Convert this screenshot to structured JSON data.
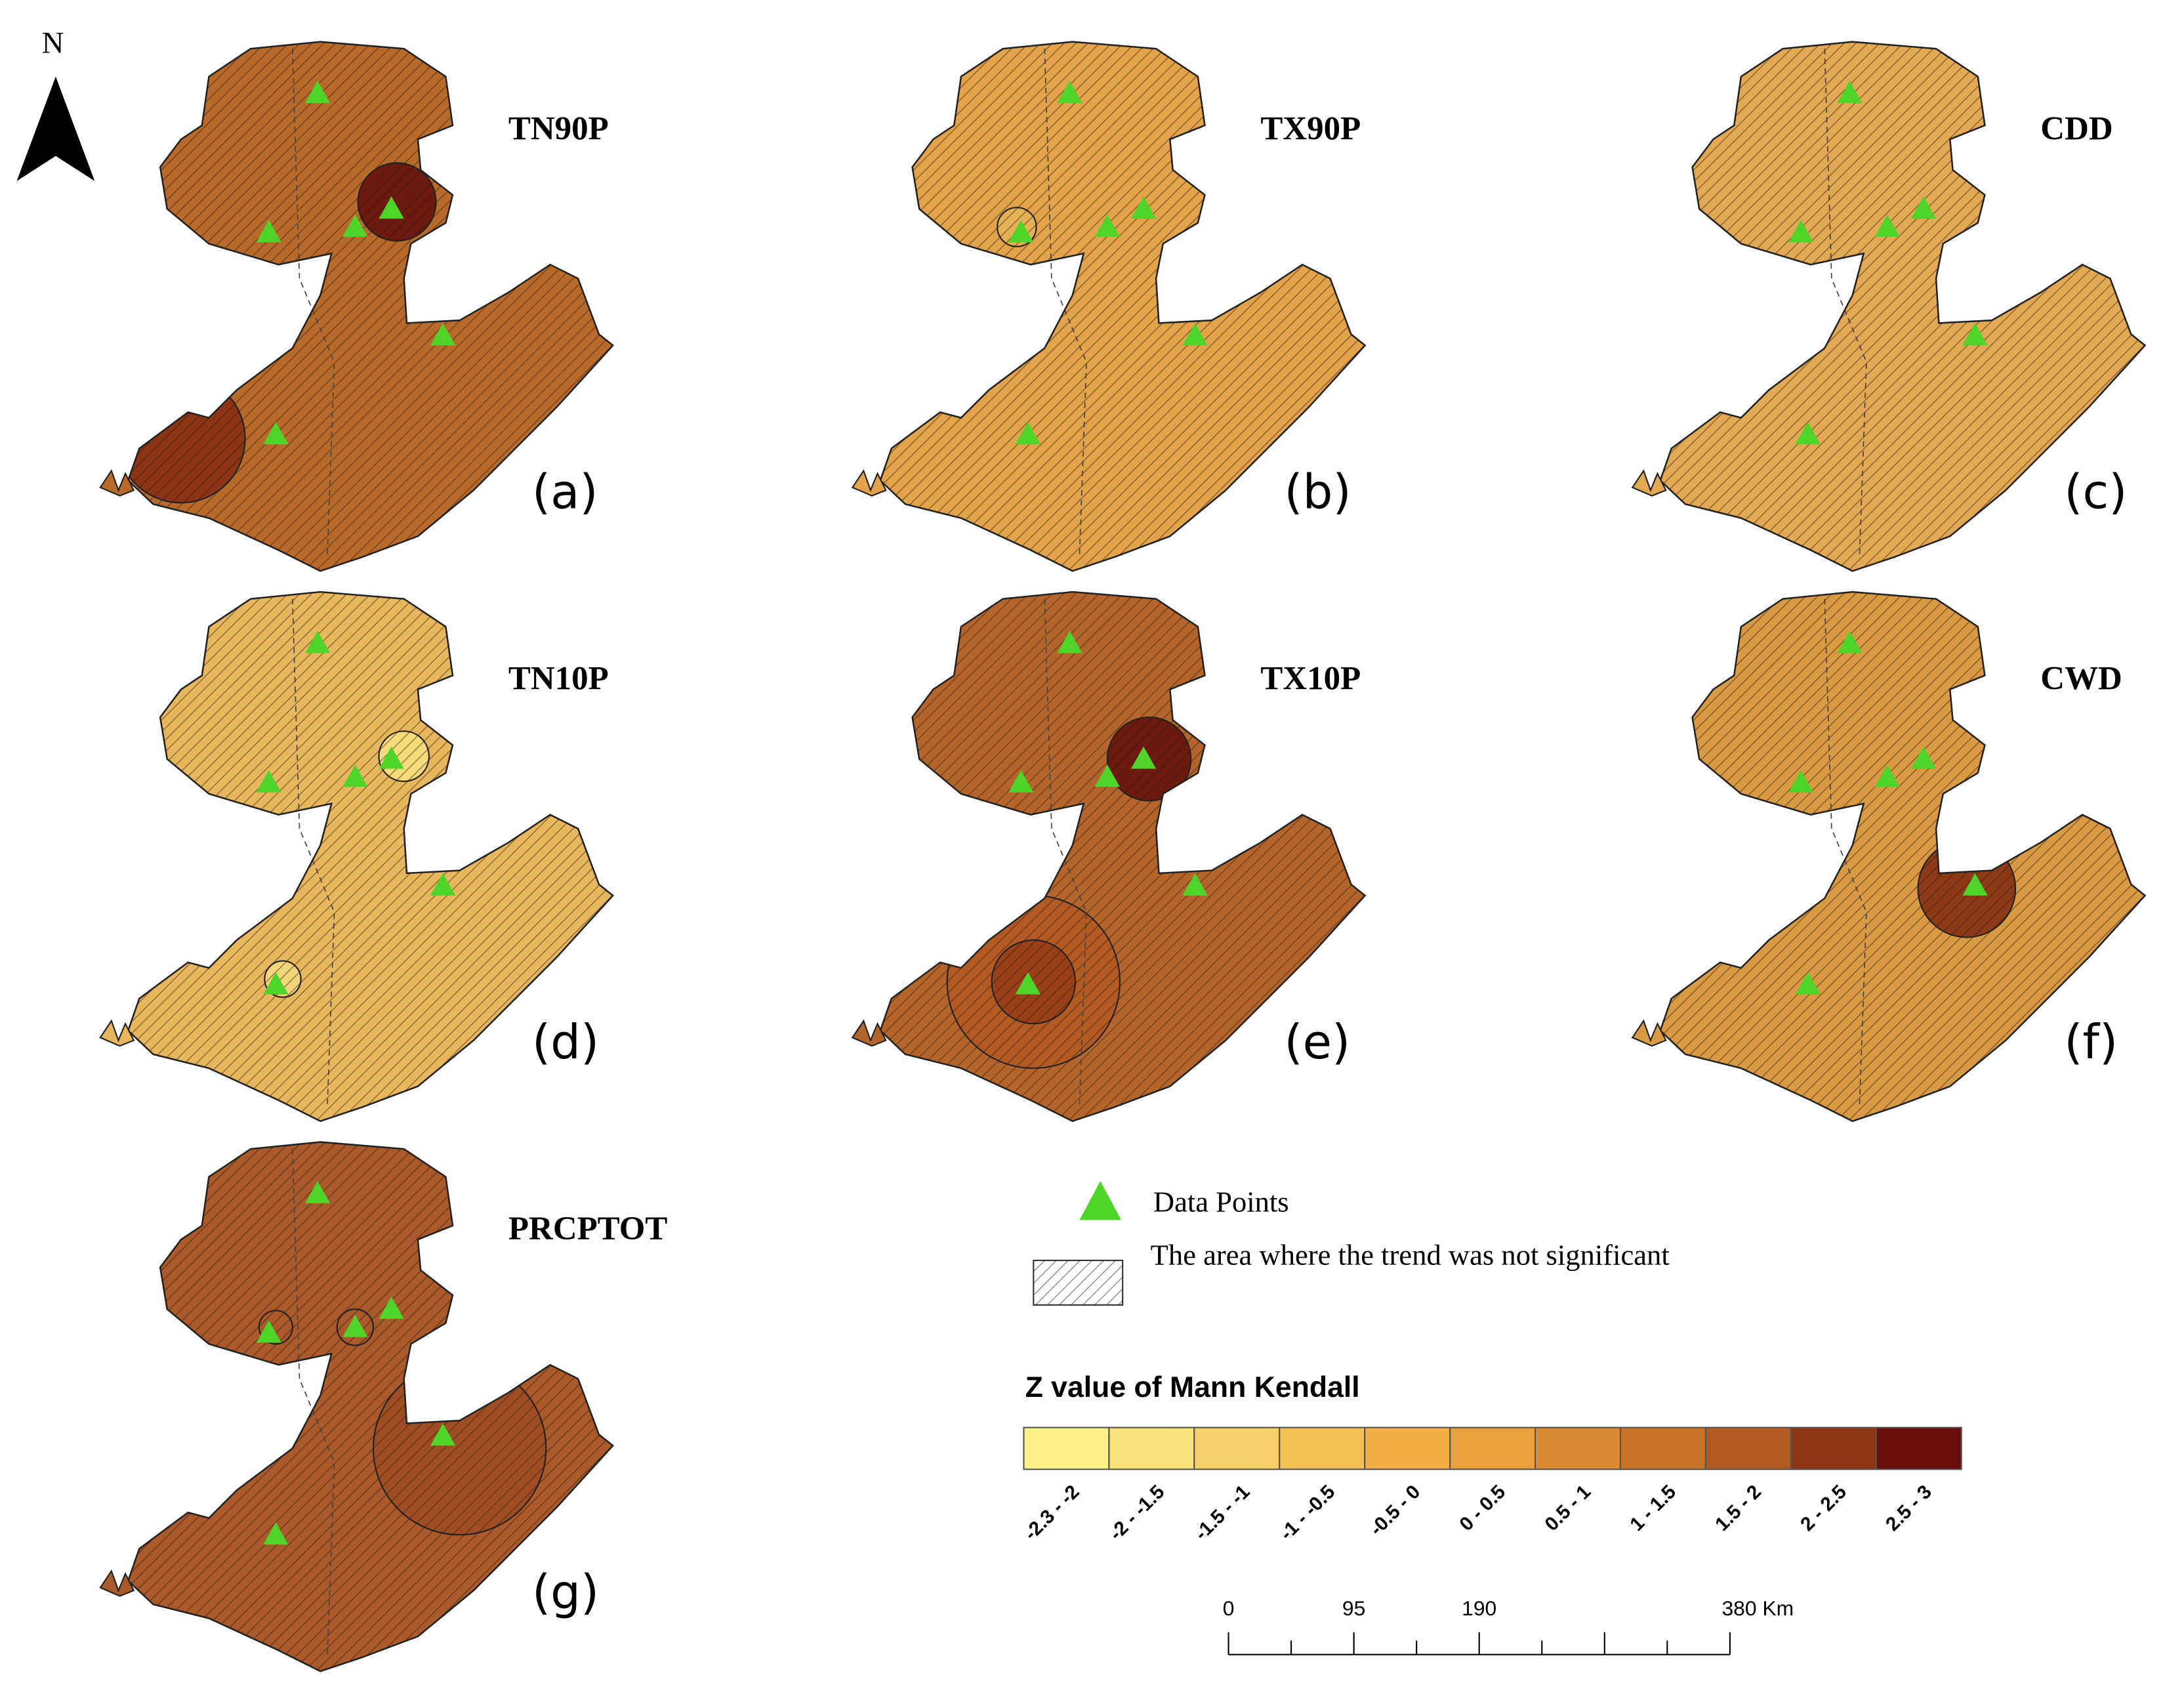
{
  "north_label": "N",
  "panels": [
    {
      "title": "TN90P",
      "label": "(a)"
    },
    {
      "title": "TX90P",
      "label": "(b)"
    },
    {
      "title": "CDD",
      "label": "(c)"
    },
    {
      "title": "TN10P",
      "label": "(d)"
    },
    {
      "title": "TX10P",
      "label": "(e)"
    },
    {
      "title": "CWD",
      "label": "(f)"
    },
    {
      "title": "PRCPTOT",
      "label": "(g)"
    }
  ],
  "legend": {
    "data_points": "Data Points",
    "not_significant": "The area where the trend was not significant",
    "title": "Z value of Mann Kendall",
    "classes": [
      {
        "label": "-2.3 - -2",
        "color": "#fdf28a"
      },
      {
        "label": "-2 - -1.5",
        "color": "#fbe17a"
      },
      {
        "label": "-1.5 - -1",
        "color": "#f8d06a"
      },
      {
        "label": "-1 - -0.5",
        "color": "#f6c058"
      },
      {
        "label": "-0.5 - 0",
        "color": "#f2ae46"
      },
      {
        "label": "0 - 0.5",
        "color": "#eaa03e"
      },
      {
        "label": "0.5 - 1",
        "color": "#da8a33"
      },
      {
        "label": "1 - 1.5",
        "color": "#c9732a"
      },
      {
        "label": "1.5 - 2",
        "color": "#b25a22"
      },
      {
        "label": "2 - 2.5",
        "color": "#8e3514"
      },
      {
        "label": "2.5 - 3",
        "color": "#6b0c0c"
      }
    ]
  },
  "scale_bar": {
    "labels": [
      "0",
      "95",
      "190",
      "380 Km"
    ]
  }
}
